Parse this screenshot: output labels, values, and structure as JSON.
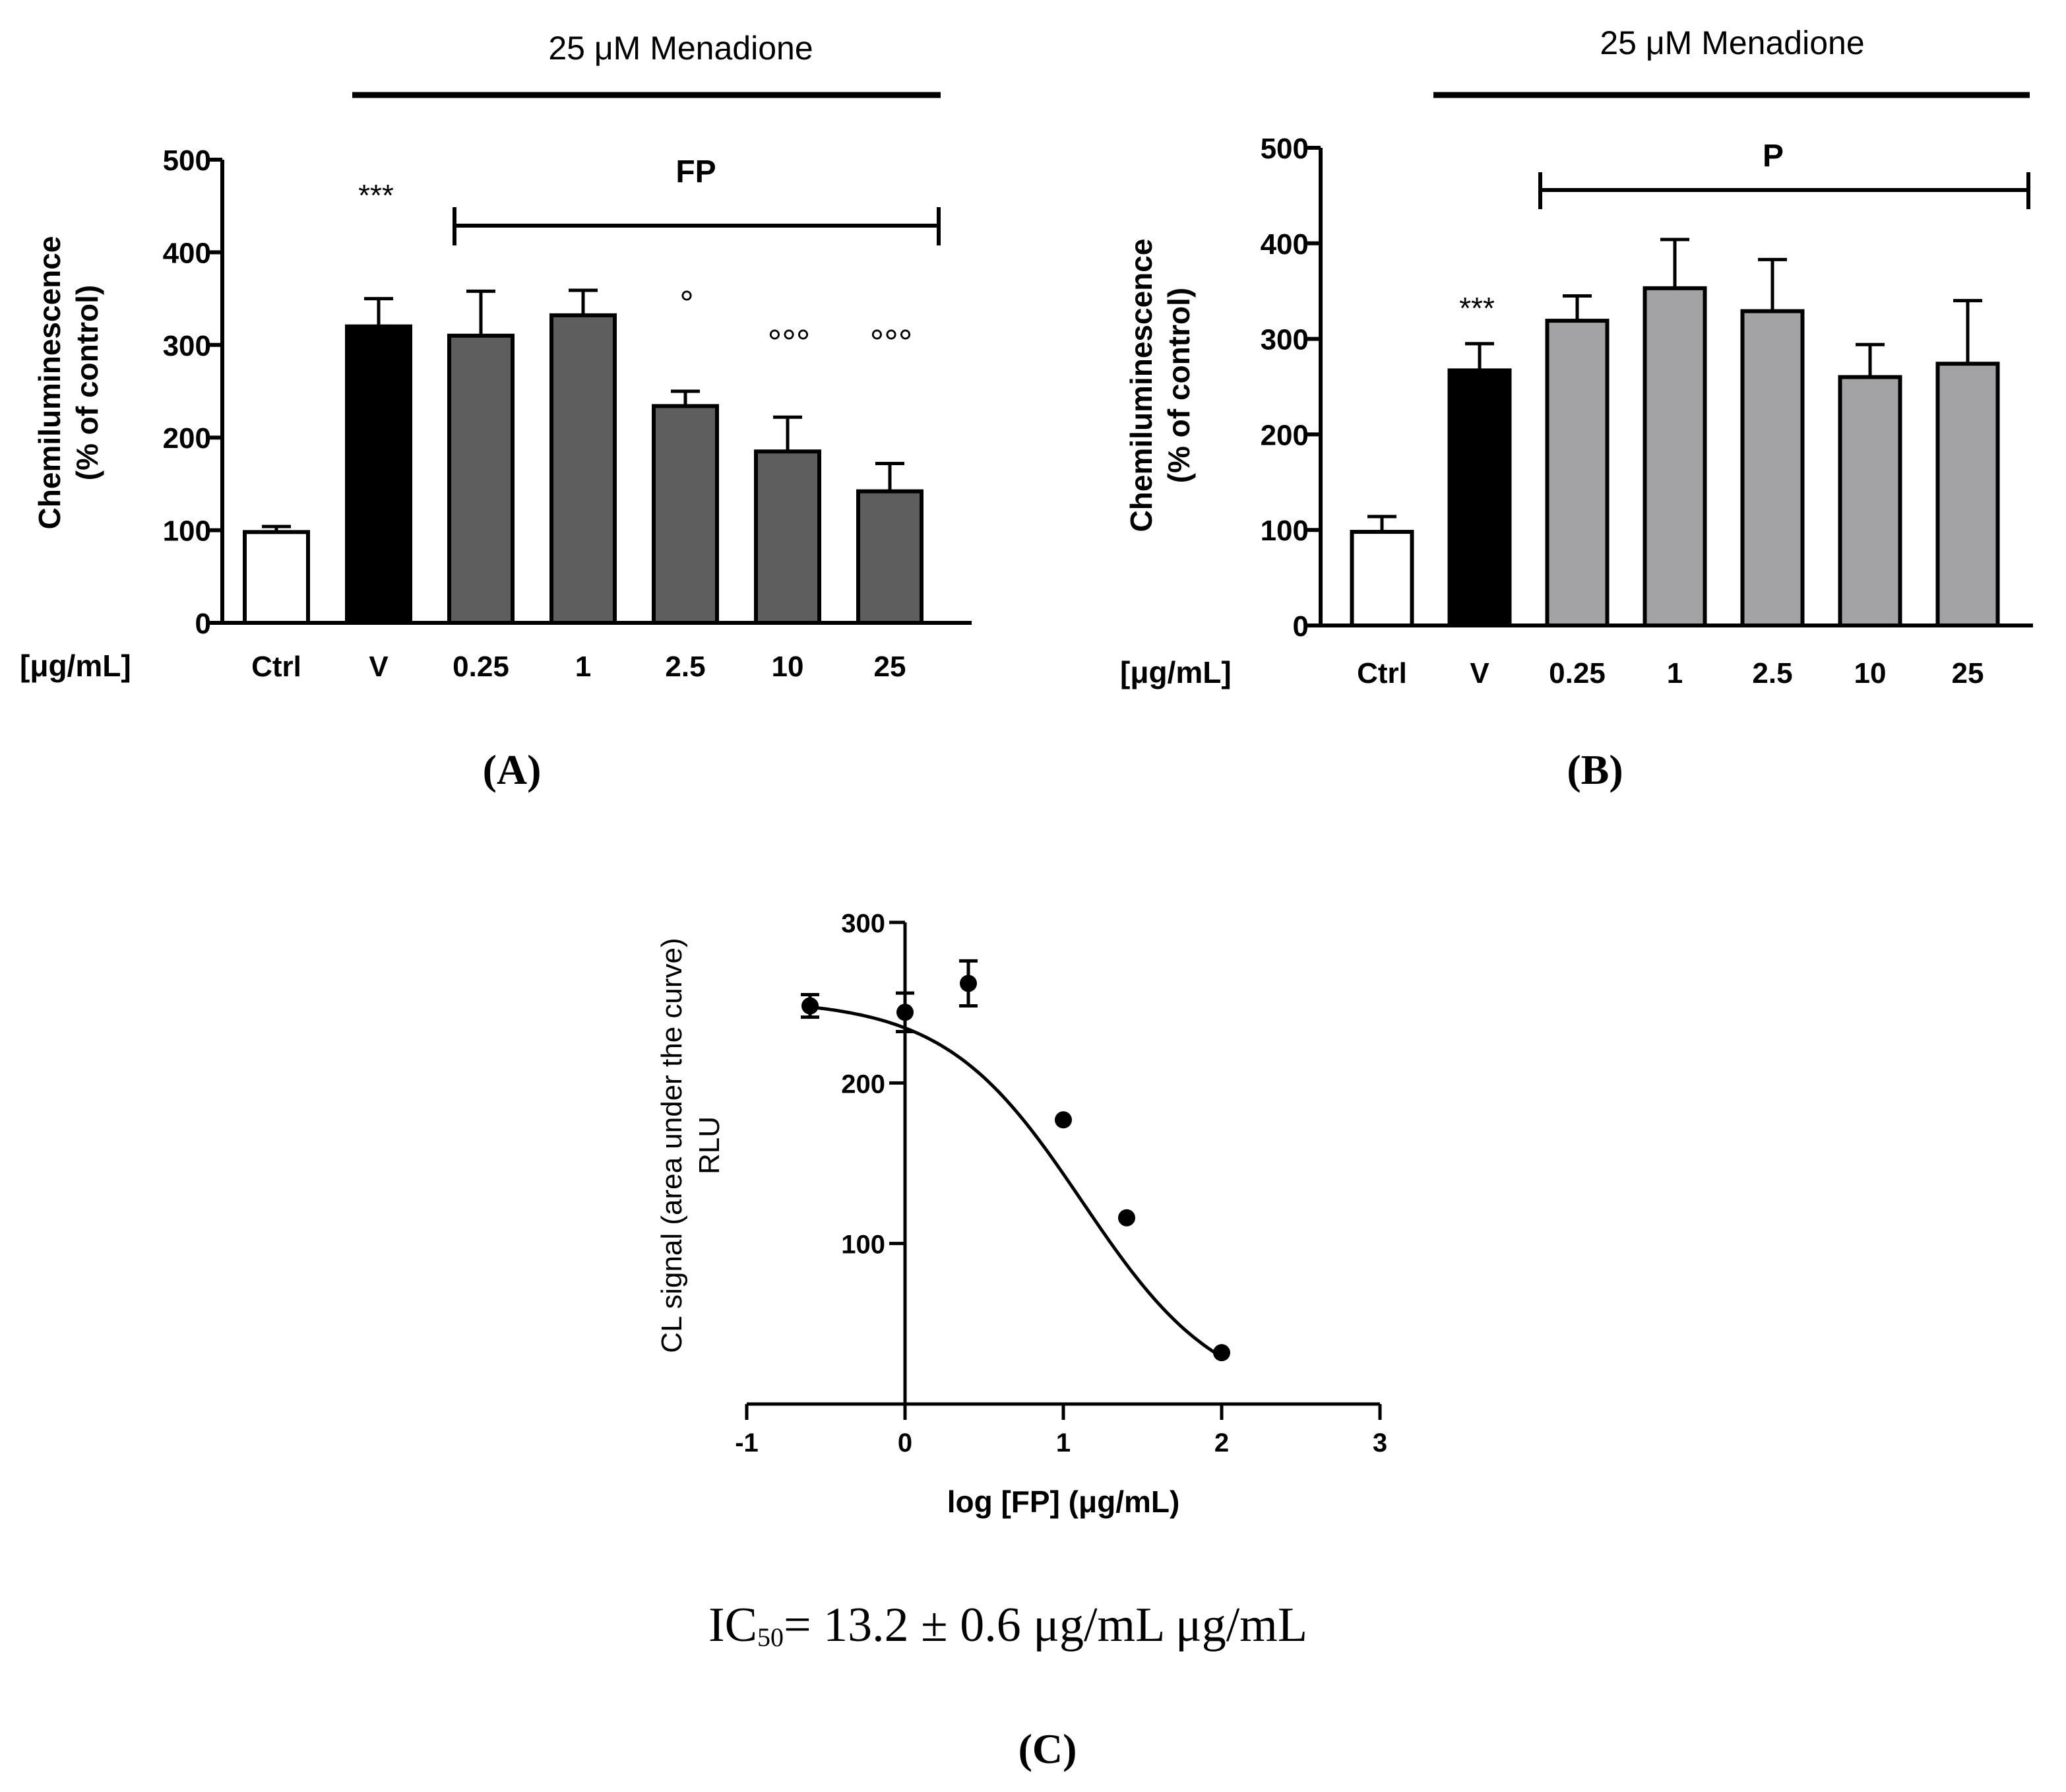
{
  "panels": {
    "A": {
      "label": "(A)",
      "menadione_label": "25 μM Menadione",
      "bracket_label": "FP",
      "unit_label": "[μg/mL]",
      "ylabel_line1": "Chemiluminescence",
      "ylabel_line2": "(% of control)"
    },
    "B": {
      "label": "(B)",
      "menadione_label": "25 μM Menadione",
      "bracket_label": "P",
      "unit_label": "[μg/mL]",
      "ylabel_line1": "Chemiluminescence",
      "ylabel_line2": "(% of control)"
    },
    "C": {
      "label": "(C)",
      "ylabel_line1": "CL signal (area under the curve)",
      "ylabel_line2": "RLU",
      "xlabel": "log [FP] (μg/mL)",
      "ic50_prefix": "IC",
      "ic50_sub": "50",
      "ic50_text": "= 13.2 ± 0.6 μg/mL μg/mL"
    }
  },
  "colors": {
    "ctrl": "#ffffff",
    "vehicle": "#000000",
    "fp": "#5e5e5e",
    "p": "#a3a3a5",
    "axis": "#000000"
  },
  "chart_data": [
    {
      "id": "A",
      "type": "bar",
      "title": "25 μM Menadione",
      "xlabel": "[μg/mL]",
      "ylabel": "Chemiluminescence (% of control)",
      "ylim": [
        0,
        500
      ],
      "yticks": [
        0,
        100,
        200,
        300,
        400,
        500
      ],
      "categories": [
        "Ctrl",
        "V",
        "0.25",
        "1",
        "2.5",
        "10",
        "25"
      ],
      "values": [
        98,
        320,
        310,
        332,
        234,
        185,
        142
      ],
      "errors": [
        6,
        30,
        48,
        27,
        16,
        37,
        30
      ],
      "fill": [
        "ctrl",
        "vehicle",
        "fp",
        "fp",
        "fp",
        "fp",
        "fp"
      ],
      "annotations": [
        "",
        "***",
        "",
        "",
        "°",
        "°°°",
        "°°°"
      ]
    },
    {
      "id": "B",
      "type": "bar",
      "title": "25 μM Menadione",
      "xlabel": "[μg/mL]",
      "ylabel": "Chemiluminescence (% of control)",
      "ylim": [
        0,
        500
      ],
      "yticks": [
        0,
        100,
        200,
        300,
        400,
        500
      ],
      "categories": [
        "Ctrl",
        "V",
        "0.25",
        "1",
        "2.5",
        "10",
        "25"
      ],
      "values": [
        98,
        267,
        319,
        353,
        329,
        260,
        274
      ],
      "errors": [
        16,
        28,
        26,
        51,
        54,
        34,
        66
      ],
      "fill": [
        "ctrl",
        "vehicle",
        "p",
        "p",
        "p",
        "p",
        "p"
      ],
      "annotations": [
        "",
        "***",
        "",
        "",
        "",
        "",
        ""
      ]
    },
    {
      "id": "C",
      "type": "scatter",
      "xlabel": "log [FP] (μg/mL)",
      "ylabel": "CL signal (area under the curve) RLU",
      "xlim": [
        -1,
        3
      ],
      "ylim": [
        0,
        300
      ],
      "xticks": [
        -1,
        0,
        1,
        2,
        3
      ],
      "yticks": [
        100,
        200,
        300
      ],
      "x": [
        -0.6,
        0,
        0.4,
        1,
        1.4,
        2
      ],
      "y": [
        248,
        244,
        262,
        177,
        116,
        32
      ],
      "errors": [
        7,
        12,
        14,
        0,
        0,
        0
      ],
      "fit": {
        "type": "sigmoid",
        "top": 252,
        "bottom": 0,
        "log_ic50": 1.12,
        "hill": -1.0
      }
    }
  ]
}
